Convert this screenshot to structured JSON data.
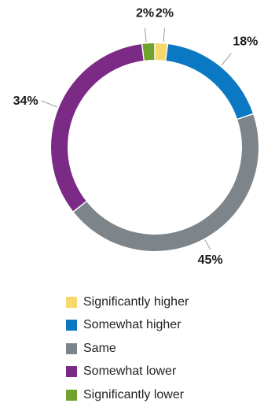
{
  "chart_data": {
    "type": "pie",
    "donut": true,
    "title": "",
    "categories": [
      "Significantly higher",
      "Somewhat higher",
      "Same",
      "Somewhat lower",
      "Significantly lower"
    ],
    "values": [
      2,
      18,
      45,
      34,
      2
    ],
    "labels": [
      "2%",
      "18%",
      "45%",
      "34%",
      "2%"
    ],
    "colors": [
      "#f7d96b",
      "#0a78c2",
      "#7d858b",
      "#7b2a86",
      "#72a22e"
    ],
    "legend_position": "bottom"
  }
}
